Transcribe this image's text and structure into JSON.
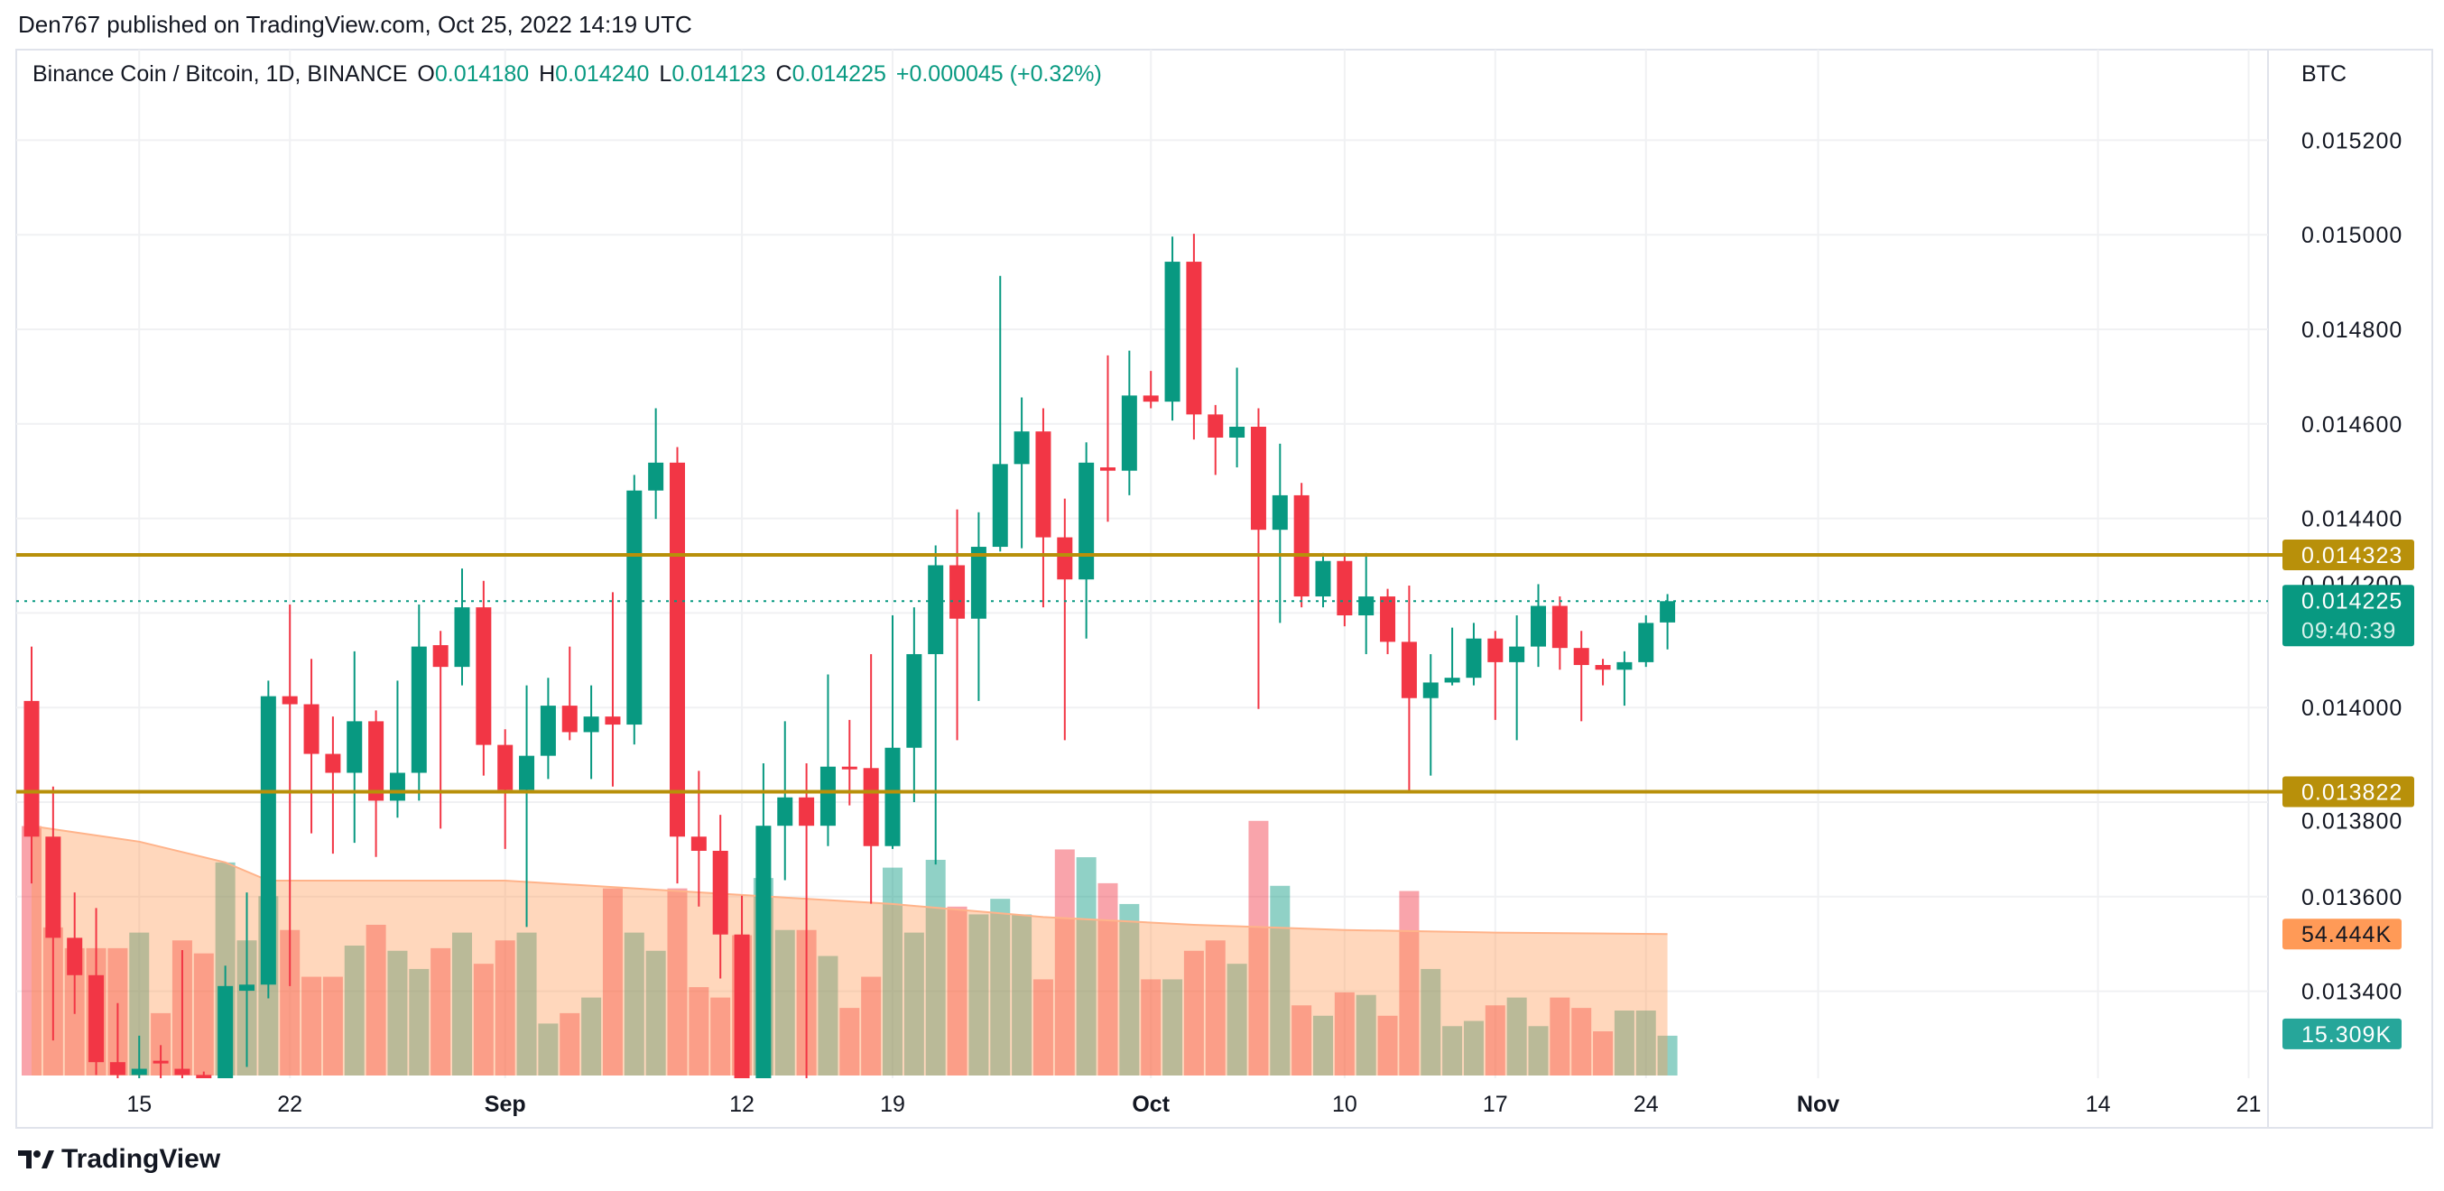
{
  "header": {
    "published": "Den767 published on TradingView.com, Oct 25, 2022 14:19 UTC"
  },
  "legend": {
    "symbol": "Binance Coin / Bitcoin, 1D, BINANCE",
    "o_label": "O",
    "o": "0.014180",
    "h_label": "H",
    "h": "0.014240",
    "l_label": "L",
    "l": "0.014123",
    "c_label": "C",
    "c": "0.014225",
    "change": "+0.000045 (+0.32%)"
  },
  "footer": {
    "brand": "TradingView"
  },
  "colors": {
    "up": "#089981",
    "down": "#f23645",
    "level": "#b8900a",
    "volume_ma": "#ff9a57",
    "grid": "#f0f1f3"
  },
  "chart_data": {
    "type": "candlestick",
    "currency": "BTC",
    "ylim": [
      0.01316,
      0.01535
    ],
    "y_ticks": [
      "0.015200",
      "0.015000",
      "0.014800",
      "0.014600",
      "0.014400",
      "0.014200",
      "0.014000",
      "0.013800",
      "0.013600",
      "0.013400"
    ],
    "x_ticks": [
      {
        "label": "15",
        "date": "2022-08-15"
      },
      {
        "label": "22",
        "date": "2022-08-22"
      },
      {
        "label": "Sep",
        "date": "2022-09-01"
      },
      {
        "label": "12",
        "date": "2022-09-12"
      },
      {
        "label": "19",
        "date": "2022-09-19"
      },
      {
        "label": "Oct",
        "date": "2022-10-01"
      },
      {
        "label": "10",
        "date": "2022-10-10"
      },
      {
        "label": "17",
        "date": "2022-10-17"
      },
      {
        "label": "24",
        "date": "2022-10-24"
      },
      {
        "label": "Nov",
        "date": "2022-11-01"
      },
      {
        "label": "14",
        "date": "2022-11-14"
      },
      {
        "label": "21",
        "date": "2022-11-21"
      }
    ],
    "first_date": "2022-08-10",
    "candles_ohlc_e6": [
      [
        14014,
        14129,
        13628,
        13727
      ],
      [
        13727,
        13833,
        13296,
        13513
      ],
      [
        13513,
        13609,
        13352,
        13434
      ],
      [
        13434,
        13576,
        13223,
        13250
      ],
      [
        13250,
        13375,
        13210,
        13223
      ],
      [
        13223,
        13306,
        13210,
        13236
      ],
      [
        13253,
        13286,
        13215,
        13250
      ],
      [
        13236,
        13487,
        13210,
        13223
      ],
      [
        13223,
        13230,
        13100,
        13150
      ],
      [
        13150,
        13454,
        13100,
        13411
      ],
      [
        13401,
        13609,
        13240,
        13414
      ],
      [
        13414,
        14057,
        13385,
        14024
      ],
      [
        14024,
        14218,
        13411,
        14007
      ],
      [
        14007,
        14103,
        13734,
        13902
      ],
      [
        13902,
        13981,
        13691,
        13862
      ],
      [
        13862,
        14119,
        13714,
        13971
      ],
      [
        13971,
        13994,
        13684,
        13803
      ],
      [
        13803,
        14057,
        13767,
        13862
      ],
      [
        13862,
        14218,
        13803,
        14129
      ],
      [
        14132,
        14162,
        13744,
        14086
      ],
      [
        14086,
        14294,
        14047,
        14212
      ],
      [
        14212,
        14268,
        13856,
        13921
      ],
      [
        13921,
        13954,
        13701,
        13826
      ],
      [
        13826,
        14047,
        13536,
        13898
      ],
      [
        13898,
        14063,
        13849,
        14004
      ],
      [
        14004,
        14129,
        13931,
        13948
      ],
      [
        13948,
        14047,
        13849,
        13981
      ],
      [
        13981,
        14244,
        13833,
        13964
      ],
      [
        13964,
        14492,
        13922,
        14459
      ],
      [
        14459,
        14633,
        14399,
        14518
      ],
      [
        14518,
        14551,
        13628,
        13727
      ],
      [
        13727,
        13866,
        13579,
        13697
      ],
      [
        13697,
        13773,
        13427,
        13520
      ],
      [
        13520,
        13602,
        13180,
        13210
      ],
      [
        13210,
        13882,
        13180,
        13750
      ],
      [
        13750,
        13971,
        13635,
        13810
      ],
      [
        13810,
        13882,
        13180,
        13750
      ],
      [
        13750,
        14070,
        13707,
        13875
      ],
      [
        13875,
        13974,
        13793,
        13872
      ],
      [
        13872,
        14113,
        13585,
        13707
      ],
      [
        13707,
        14195,
        13701,
        13915
      ],
      [
        13915,
        14212,
        13800,
        14113
      ],
      [
        14113,
        14343,
        13668,
        14301
      ],
      [
        14301,
        14419,
        13931,
        14188
      ],
      [
        14188,
        14413,
        14014,
        14340
      ],
      [
        14340,
        14913,
        14330,
        14515
      ],
      [
        14515,
        14656,
        14337,
        14584
      ],
      [
        14584,
        14633,
        14212,
        14360
      ],
      [
        14360,
        14442,
        13931,
        14271
      ],
      [
        14271,
        14561,
        14146,
        14518
      ],
      [
        14508,
        14745,
        14393,
        14501
      ],
      [
        14501,
        14755,
        14449,
        14660
      ],
      [
        14660,
        14712,
        14633,
        14647
      ],
      [
        14647,
        14996,
        14607,
        14943
      ],
      [
        14943,
        15002,
        14567,
        14620
      ],
      [
        14620,
        14640,
        14492,
        14571
      ],
      [
        14571,
        14719,
        14508,
        14594
      ],
      [
        14594,
        14633,
        13997,
        14376
      ],
      [
        14376,
        14558,
        14179,
        14449
      ],
      [
        14449,
        14475,
        14212,
        14235
      ],
      [
        14235,
        14327,
        14212,
        14310
      ],
      [
        14310,
        14327,
        14172,
        14195
      ],
      [
        14195,
        14327,
        14113,
        14235
      ],
      [
        14235,
        14251,
        14113,
        14139
      ],
      [
        14139,
        14258,
        13823,
        14020
      ],
      [
        14020,
        14113,
        13856,
        14053
      ],
      [
        14053,
        14169,
        14047,
        14063
      ],
      [
        14063,
        14179,
        14047,
        14146
      ],
      [
        14146,
        14162,
        13974,
        14096
      ],
      [
        14096,
        14195,
        13931,
        14129
      ],
      [
        14129,
        14261,
        14086,
        14215
      ],
      [
        14215,
        14235,
        14080,
        14126
      ],
      [
        14126,
        14162,
        13971,
        14090
      ],
      [
        14090,
        14103,
        14047,
        14080
      ],
      [
        14080,
        14119,
        14004,
        14096
      ],
      [
        14096,
        14195,
        14086,
        14179
      ],
      [
        14180,
        14240,
        14123,
        14225
      ]
    ],
    "volume_k": [
      96,
      57,
      49,
      49,
      49,
      55,
      24,
      52,
      47,
      82,
      52,
      69,
      56,
      38,
      38,
      50,
      58,
      48,
      41,
      49,
      55,
      43,
      52,
      55,
      20,
      24,
      30,
      72,
      55,
      48,
      72,
      34,
      30,
      54,
      76,
      56,
      56,
      46,
      26,
      38,
      80,
      55,
      83,
      65,
      62,
      68,
      62,
      37,
      87,
      84,
      74,
      66,
      37,
      37,
      48,
      52,
      43,
      98,
      73,
      27,
      23,
      32,
      31,
      23,
      71,
      41,
      19,
      21,
      27,
      30,
      19,
      30,
      26,
      17,
      25,
      25,
      15.309
    ],
    "volume_ma_points": [
      {
        "date": "2022-08-10",
        "value": 96
      },
      {
        "date": "2022-08-15",
        "value": 90
      },
      {
        "date": "2022-08-19",
        "value": 82
      },
      {
        "date": "2022-08-21",
        "value": 75
      },
      {
        "date": "2022-09-01",
        "value": 75
      },
      {
        "date": "2022-09-09",
        "value": 71
      },
      {
        "date": "2022-09-19",
        "value": 66
      },
      {
        "date": "2022-09-26",
        "value": 61
      },
      {
        "date": "2022-10-03",
        "value": 58
      },
      {
        "date": "2022-10-10",
        "value": 56
      },
      {
        "date": "2022-10-17",
        "value": 55
      },
      {
        "date": "2022-10-25",
        "value": 54.444
      }
    ],
    "levels": [
      {
        "value": 0.014323,
        "label": "0.014323"
      },
      {
        "value": 0.013822,
        "label": "0.013822"
      }
    ],
    "last_price": {
      "value": 0.014225,
      "label": "0.014225",
      "countdown": "09:40:39"
    },
    "volume_ma_label": "54.444K",
    "volume_label": "15.309K"
  }
}
